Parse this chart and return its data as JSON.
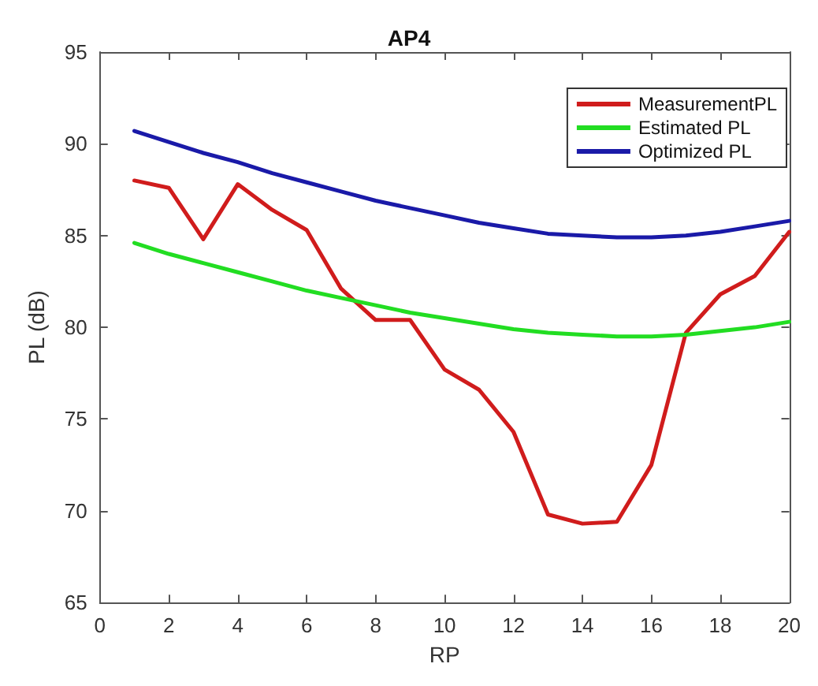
{
  "chart_data": {
    "type": "line",
    "title": "AP4",
    "xlabel": "RP",
    "ylabel": "PL (dB)",
    "x": [
      1,
      2,
      3,
      4,
      5,
      6,
      7,
      8,
      9,
      10,
      11,
      12,
      13,
      14,
      15,
      16,
      17,
      18,
      19,
      20
    ],
    "series": [
      {
        "name": "MeasurementPL",
        "color": "#d01c1c",
        "values": [
          88.0,
          87.6,
          84.8,
          87.8,
          86.4,
          85.3,
          82.1,
          80.4,
          80.4,
          77.7,
          76.6,
          74.3,
          69.8,
          69.3,
          69.4,
          72.5,
          79.7,
          81.8,
          82.8,
          85.2
        ]
      },
      {
        "name": "Estimated PL",
        "color": "#22dd22",
        "values": [
          84.6,
          84.0,
          83.5,
          83.0,
          82.5,
          82.0,
          81.6,
          81.2,
          80.8,
          80.5,
          80.2,
          79.9,
          79.7,
          79.6,
          79.5,
          79.5,
          79.6,
          79.8,
          80.0,
          80.3
        ]
      },
      {
        "name": "Optimized PL",
        "color": "#1a1aa8",
        "values": [
          90.7,
          90.1,
          89.5,
          89.0,
          88.4,
          87.9,
          87.4,
          86.9,
          86.5,
          86.1,
          85.7,
          85.4,
          85.1,
          85.0,
          84.9,
          84.9,
          85.0,
          85.2,
          85.5,
          85.8
        ]
      }
    ],
    "xlim": [
      0,
      20
    ],
    "xticks": [
      0,
      2,
      4,
      6,
      8,
      10,
      12,
      14,
      16,
      18,
      20
    ],
    "ylim": [
      65,
      95
    ],
    "yticks": [
      65,
      70,
      75,
      80,
      85,
      90,
      95
    ],
    "grid": false,
    "legend": "top right",
    "marker": "none",
    "line_style": "solid"
  }
}
